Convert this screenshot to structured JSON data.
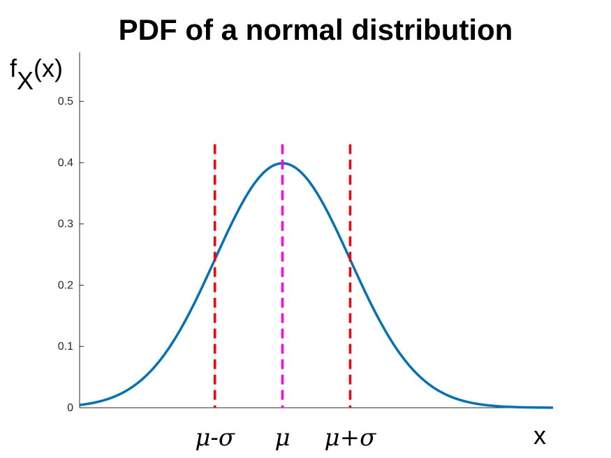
{
  "chart_data": {
    "type": "line",
    "title": "PDF of a normal distribution",
    "ylabel": {
      "main": "f",
      "sub": "X",
      "tail": "(x)"
    },
    "xlabel": "x",
    "mu": 0,
    "sigma": 1,
    "xlim": [
      -3,
      4
    ],
    "ylim": [
      0,
      0.58
    ],
    "y_ticks": [
      {
        "value": 0,
        "label": "0"
      },
      {
        "value": 0.1,
        "label": "0.1"
      },
      {
        "value": 0.2,
        "label": "0.2"
      },
      {
        "value": 0.3,
        "label": "0.3"
      },
      {
        "value": 0.4,
        "label": "0.4"
      },
      {
        "value": 0.5,
        "label": "0.5"
      }
    ],
    "x_ticks": [
      {
        "value": -1,
        "label": "μ-σ"
      },
      {
        "value": 0,
        "label": "μ"
      },
      {
        "value": 1,
        "label": "μ+σ"
      }
    ],
    "series": [
      {
        "color": "#0072BD",
        "function": "normal_pdf"
      }
    ],
    "reference_lines": [
      {
        "x": -1,
        "y_top": 0.43,
        "color": "#FF0000",
        "style": "dashed"
      },
      {
        "x": 0,
        "y_top": 0.43,
        "color": "#FF00FF",
        "style": "dashed"
      },
      {
        "x": 1,
        "y_top": 0.43,
        "color": "#FF0000",
        "style": "dashed"
      }
    ],
    "grid": false,
    "legend": "none"
  }
}
